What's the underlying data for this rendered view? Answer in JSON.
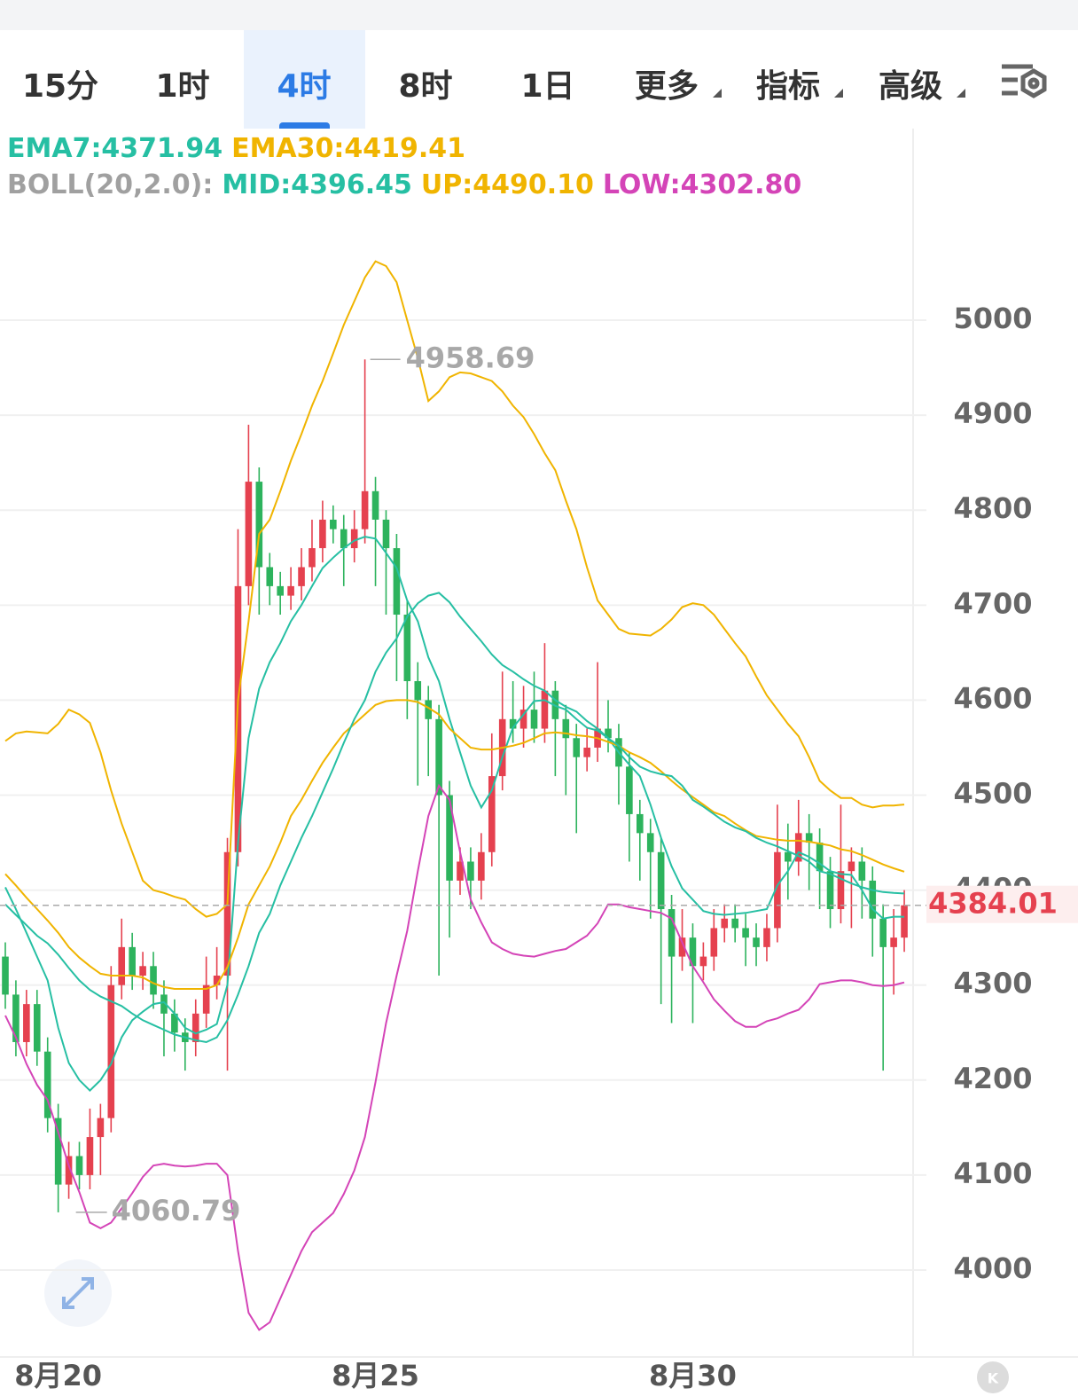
{
  "tabs": [
    "15分",
    "1时",
    "4时",
    "8时",
    "1日",
    "更多",
    "指标",
    "高级"
  ],
  "active_tab": "4时",
  "k_icon": "K",
  "chart_data": {
    "type": "candlestick",
    "indicator_label": "BOLL(20,2.0):",
    "up_color": "#e5414f",
    "down_color": "#2db35d",
    "categories": [
      null,
      null,
      null,
      null,
      null,
      "8月20",
      null,
      null,
      null,
      null,
      null,
      null,
      null,
      null,
      null,
      null,
      null,
      null,
      null,
      null,
      null,
      null,
      null,
      null,
      null,
      null,
      null,
      null,
      null,
      null,
      null,
      null,
      null,
      null,
      null,
      "8月25",
      null,
      null,
      null,
      null,
      null,
      null,
      null,
      null,
      null,
      null,
      null,
      null,
      null,
      null,
      null,
      null,
      null,
      null,
      null,
      null,
      null,
      null,
      null,
      null,
      null,
      null,
      null,
      null,
      null,
      "8月30",
      null,
      null,
      null,
      null,
      null,
      null,
      null,
      null,
      null,
      null,
      null,
      null,
      null,
      null,
      null,
      null,
      null,
      null,
      null,
      null
    ],
    "open": [
      4330,
      4290,
      4240,
      4280,
      4230,
      4160,
      4090,
      4120,
      4100,
      4140,
      4160,
      4300,
      4340,
      4310,
      4320,
      4290,
      4270,
      4250,
      4240,
      4270,
      4300,
      4310,
      4440,
      4720,
      4830,
      4740,
      4720,
      4710,
      4720,
      4740,
      4760,
      4790,
      4780,
      4760,
      4780,
      4820,
      4790,
      4760,
      4690,
      4620,
      4600,
      4580,
      4500,
      4410,
      4430,
      4410,
      4440,
      4520,
      4580,
      4570,
      4590,
      4570,
      4610,
      4580,
      4560,
      4540,
      4550,
      4570,
      4560,
      4530,
      4480,
      4460,
      4440,
      4380,
      4330,
      4350,
      4320,
      4330,
      4360,
      4370,
      4360,
      4350,
      4340,
      4360,
      4440,
      4430,
      4460,
      4450,
      4420,
      4380,
      4420,
      4430,
      4410,
      4370,
      4340,
      4350
    ],
    "high": [
      4345,
      4305,
      4295,
      4295,
      4245,
      4175,
      4135,
      4135,
      4170,
      4175,
      4320,
      4370,
      4355,
      4335,
      4335,
      4305,
      4285,
      4265,
      4285,
      4330,
      4340,
      4455,
      4780,
      4890,
      4845,
      4755,
      4735,
      4740,
      4760,
      4790,
      4810,
      4805,
      4795,
      4800,
      4958.69,
      4835,
      4800,
      4775,
      4705,
      4640,
      4615,
      4595,
      4515,
      4445,
      4445,
      4460,
      4565,
      4630,
      4620,
      4615,
      4630,
      4660,
      4620,
      4595,
      4575,
      4570,
      4640,
      4600,
      4575,
      4545,
      4495,
      4475,
      4455,
      4395,
      4380,
      4365,
      4345,
      4380,
      4385,
      4385,
      4375,
      4365,
      4375,
      4490,
      4470,
      4495,
      4480,
      4465,
      4435,
      4490,
      4445,
      4445,
      4425,
      4385,
      4380,
      4400
    ],
    "low": [
      4275,
      4225,
      4225,
      4215,
      4145,
      4060.79,
      4075,
      4085,
      4085,
      4100,
      4145,
      4285,
      4295,
      4295,
      4275,
      4225,
      4230,
      4210,
      4225,
      4255,
      4285,
      4210,
      4425,
      4700,
      4690,
      4700,
      4690,
      4695,
      4705,
      4725,
      4745,
      4765,
      4720,
      4745,
      4765,
      4720,
      4690,
      4620,
      4580,
      4510,
      4520,
      4310,
      4350,
      4395,
      4380,
      4390,
      4425,
      4505,
      4555,
      4550,
      4555,
      4555,
      4520,
      4500,
      4460,
      4525,
      4535,
      4545,
      4490,
      4430,
      4410,
      4370,
      4280,
      4260,
      4315,
      4260,
      4305,
      4315,
      4345,
      4345,
      4320,
      4320,
      4325,
      4345,
      4390,
      4415,
      4400,
      4380,
      4360,
      4365,
      4360,
      4370,
      4330,
      4210,
      4290,
      4335
    ],
    "close": [
      4290,
      4240,
      4280,
      4230,
      4160,
      4090,
      4120,
      4100,
      4140,
      4160,
      4300,
      4340,
      4310,
      4320,
      4290,
      4270,
      4250,
      4240,
      4270,
      4300,
      4310,
      4440,
      4720,
      4830,
      4740,
      4720,
      4710,
      4720,
      4740,
      4760,
      4790,
      4780,
      4760,
      4780,
      4820,
      4790,
      4760,
      4690,
      4620,
      4600,
      4580,
      4500,
      4410,
      4430,
      4410,
      4440,
      4520,
      4580,
      4570,
      4590,
      4570,
      4610,
      4580,
      4560,
      4540,
      4550,
      4570,
      4560,
      4530,
      4480,
      4460,
      4440,
      4380,
      4330,
      4350,
      4320,
      4330,
      4360,
      4370,
      4360,
      4350,
      4340,
      4360,
      4440,
      4430,
      4460,
      4450,
      4420,
      4380,
      4420,
      4430,
      4410,
      4370,
      4340,
      4350,
      4384.01
    ],
    "series": [
      {
        "name": "EMA7",
        "label": "EMA7:4371.94",
        "color": "#26bfa3",
        "values": [
          4403,
          4380,
          4355,
          4330,
          4305,
          4255,
          4218,
          4200,
          4189,
          4200,
          4217,
          4245,
          4263,
          4272,
          4280,
          4282,
          4270,
          4255,
          4249,
          4253,
          4259,
          4300,
          4450,
          4560,
          4612,
          4640,
          4660,
          4683,
          4700,
          4720,
          4739,
          4750,
          4760,
          4768,
          4772,
          4770,
          4755,
          4739,
          4705,
          4683,
          4645,
          4620,
          4580,
          4545,
          4510,
          4487,
          4505,
          4540,
          4571,
          4585,
          4599,
          4600,
          4594,
          4590,
          4580,
          4571,
          4568,
          4560,
          4545,
          4532,
          4520,
          4490,
          4455,
          4425,
          4402,
          4390,
          4378,
          4375,
          4374,
          4375,
          4376,
          4378,
          4380,
          4405,
          4420,
          4440,
          4435,
          4428,
          4420,
          4417,
          4416,
          4400,
          4380,
          4370,
          4372,
          4371.94
        ]
      },
      {
        "name": "EMA30",
        "label": "EMA30:4419.41",
        "color": "#f0b400",
        "values": [
          4417,
          4405,
          4392,
          4380,
          4368,
          4355,
          4340,
          4329,
          4320,
          4312,
          4310,
          4310,
          4310,
          4308,
          4302,
          4298,
          4296,
          4296,
          4296,
          4296,
          4300,
          4319,
          4350,
          4385,
          4405,
          4425,
          4450,
          4478,
          4495,
          4515,
          4534,
          4550,
          4565,
          4575,
          4585,
          4595,
          4599,
          4600,
          4600,
          4598,
          4592,
          4585,
          4570,
          4560,
          4550,
          4548,
          4548,
          4550,
          4552,
          4555,
          4560,
          4565,
          4566,
          4565,
          4563,
          4562,
          4560,
          4556,
          4552,
          4545,
          4540,
          4534,
          4525,
          4515,
          4506,
          4498,
          4490,
          4482,
          4478,
          4470,
          4463,
          4457,
          4455,
          4453,
          4452,
          4452,
          4451,
          4449,
          4447,
          4443,
          4441,
          4437,
          4432,
          4427,
          4423,
          4419.41
        ]
      },
      {
        "name": "MID",
        "label": "MID:4396.45",
        "color": "#26bfa3",
        "values": [
          4385,
          4374,
          4363,
          4352,
          4344,
          4332,
          4318,
          4305,
          4295,
          4288,
          4283,
          4278,
          4270,
          4263,
          4258,
          4253,
          4248,
          4245,
          4242,
          4240,
          4245,
          4263,
          4290,
          4320,
          4355,
          4375,
          4405,
          4430,
          4455,
          4478,
          4503,
          4528,
          4555,
          4580,
          4600,
          4630,
          4650,
          4665,
          4688,
          4702,
          4710,
          4713,
          4703,
          4688,
          4675,
          4662,
          4648,
          4637,
          4630,
          4622,
          4615,
          4610,
          4600,
          4593,
          4588,
          4578,
          4570,
          4560,
          4552,
          4540,
          4530,
          4525,
          4522,
          4520,
          4510,
          4495,
          4488,
          4480,
          4472,
          4466,
          4462,
          4455,
          4450,
          4446,
          4441,
          4436,
          4430,
          4420,
          4417,
          4412,
          4407,
          4403,
          4400,
          4398,
          4397,
          4396.45
        ]
      },
      {
        "name": "UP",
        "label": "UP:4490.10",
        "color": "#f0b400",
        "values": [
          4557,
          4565,
          4567,
          4566,
          4565,
          4575,
          4590,
          4585,
          4576,
          4545,
          4505,
          4470,
          4440,
          4410,
          4400,
          4397,
          4393,
          4390,
          4380,
          4372,
          4375,
          4385,
          4600,
          4683,
          4775,
          4790,
          4820,
          4852,
          4880,
          4910,
          4936,
          4965,
          4995,
          5020,
          5045,
          5062,
          5057,
          5040,
          5000,
          4960,
          4915,
          4925,
          4940,
          4945,
          4944,
          4940,
          4936,
          4925,
          4910,
          4898,
          4880,
          4860,
          4842,
          4810,
          4780,
          4740,
          4705,
          4690,
          4675,
          4670,
          4669,
          4668,
          4675,
          4685,
          4698,
          4702,
          4700,
          4690,
          4675,
          4660,
          4646,
          4625,
          4605,
          4590,
          4575,
          4562,
          4540,
          4515,
          4505,
          4497,
          4497,
          4490,
          4487,
          4489,
          4489,
          4490.1
        ]
      },
      {
        "name": "LOW",
        "label": "LOW:4302.80",
        "color": "#d444b7",
        "values": [
          4268,
          4245,
          4217,
          4195,
          4179,
          4145,
          4110,
          4082,
          4050,
          4044,
          4050,
          4065,
          4081,
          4098,
          4110,
          4112,
          4110,
          4109,
          4110,
          4112,
          4112,
          4100,
          4020,
          3955,
          3937,
          3945,
          3970,
          3995,
          4020,
          4040,
          4050,
          4060,
          4080,
          4105,
          4140,
          4198,
          4260,
          4310,
          4357,
          4420,
          4478,
          4510,
          4495,
          4440,
          4390,
          4366,
          4345,
          4338,
          4333,
          4331,
          4330,
          4333,
          4336,
          4338,
          4345,
          4352,
          4365,
          4385,
          4385,
          4382,
          4380,
          4378,
          4376,
          4370,
          4345,
          4320,
          4303,
          4285,
          4273,
          4262,
          4256,
          4256,
          4262,
          4265,
          4270,
          4274,
          4285,
          4301,
          4303,
          4305,
          4305,
          4303,
          4300,
          4299,
          4300,
          4302.8
        ]
      }
    ],
    "ylim": [
      3908.5,
      5201.7
    ],
    "yticks": [
      4000,
      4100,
      4200,
      4300,
      4400,
      4500,
      4600,
      4700,
      4800,
      4900,
      5000
    ],
    "grid": true
  }
}
